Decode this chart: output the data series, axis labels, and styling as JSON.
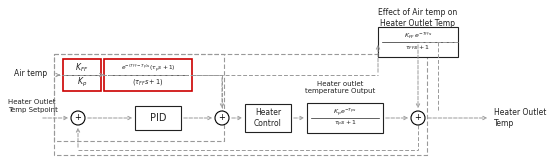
{
  "figsize": [
    5.5,
    1.66
  ],
  "dpi": 100,
  "bg_color": "#ffffff",
  "title_top": "Effect of Air temp on\nHeater Outlet Temp",
  "label_air_temp": "Air temp",
  "label_setpoint": "Heater Outlet\nTemp Setpoint",
  "label_heater_outlet": "Heater outlet\ntemperature Output",
  "label_heater_temp": "Heater Outlet\nTemp",
  "box1_num_top": "$K_{FF}$",
  "box1_num_bot": "$K_p$",
  "box2_num_top": "$e^{-(T_{FF}-T_p)s}(\\tau_p s+1)$",
  "box2_num_bot": "$(\\tau_{FF}s+1)$",
  "box3_num_top": "$K_{FF}\\, e^{-T_{FF}s}$",
  "box3_num_bot": "$\\tau_{FF}s+1$",
  "box4_label": "PID",
  "box5_label": "Heater\nControl",
  "box6_num_top": "$K_p e^{-T_{p}s}$",
  "box6_num_bot": "$\\tau_p s+1$",
  "color_red": "#cc0000",
  "color_black": "#222222",
  "color_dashed": "#999999",
  "color_label": "#cc6600"
}
